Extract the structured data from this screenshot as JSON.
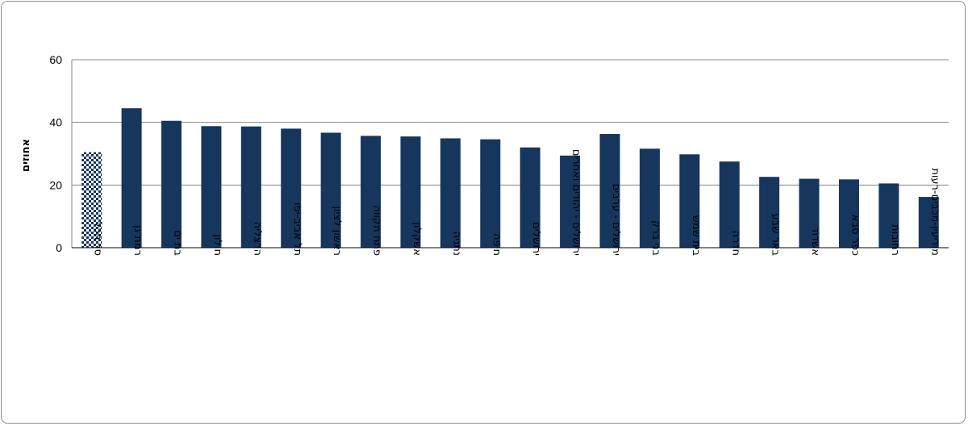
{
  "chart_data": {
    "type": "bar",
    "title": "",
    "xlabel": "",
    "ylabel": "אחוזים",
    "ylim": [
      0,
      60
    ],
    "yticks": [
      0,
      20,
      40,
      60
    ],
    "grid": true,
    "legend": "none",
    "colors": {
      "bar": "#17365d",
      "highlight_dark": "#17365d",
      "highlight_light": "#ffffff",
      "grid": "#868686"
    },
    "categories": [
      "סך הכל",
      "רמת גן",
      "בת ים",
      "חולון",
      "הרצליה",
      "תל אביב-יפו",
      "ראשון לציון",
      "פתח תקווה",
      "אשקלון",
      "נתניה",
      "חיפה",
      "ירושלים",
      "ירושלים - יהודים ואחרים",
      "ירושלים - ערבים",
      "בני ברק",
      "בית שמש",
      "חדרה",
      "באר שבע",
      "אשדוד",
      "כפר סבא",
      "רחובות",
      "מודיעין-מכבים-רעות"
    ],
    "values": [
      30.5,
      44.5,
      40.5,
      38.8,
      38.7,
      38.0,
      36.7,
      35.7,
      35.5,
      34.9,
      34.6,
      32.0,
      29.4,
      36.3,
      31.6,
      29.8,
      27.5,
      22.6,
      22.0,
      21.8,
      20.5,
      16.2
    ],
    "highlight_index": 0
  }
}
